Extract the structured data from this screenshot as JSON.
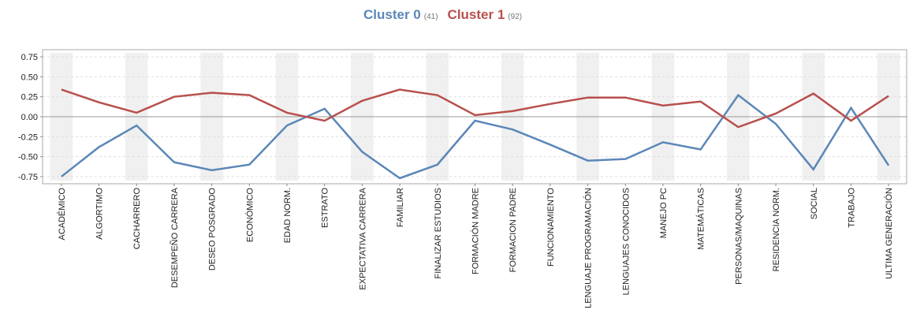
{
  "chart_data": {
    "type": "line",
    "categories": [
      "ACADÉMICO",
      "ALGORTIMO",
      "CACHARRERO",
      "DESEMPEÑO CARRERA",
      "DESEO POSGRADO",
      "ECONÓMICO",
      "EDAD NORM.",
      "ESTRATO",
      "EXPECTATIVA CARRERA",
      "FAMILIAR",
      "FINALIZAR ESTUDIOS",
      "FORMACIÓN MADRE",
      "FORMACION PADRE",
      "FUNCIONAMIENTO",
      "LENGUAJE PROGRAMACIÓN",
      "LENGUAJES CONOCIDOS",
      "MANEJO PC",
      "MATEMÁTICAS",
      "PERSONAS/MAQUINAS",
      "RESIDENCIA NORM.",
      "SOCIAL",
      "TRABAJO",
      "ULTIMA GENERACIÓN"
    ],
    "series": [
      {
        "name": "Cluster 0",
        "size_label": "(41)",
        "color": "#5b87b8",
        "values": [
          -0.75,
          -0.38,
          -0.11,
          -0.57,
          -0.67,
          -0.6,
          -0.11,
          0.1,
          -0.44,
          -0.77,
          -0.6,
          -0.05,
          -0.16,
          -0.35,
          -0.55,
          -0.53,
          -0.32,
          -0.41,
          0.27,
          -0.09,
          -0.66,
          0.11,
          -0.61
        ]
      },
      {
        "name": "Cluster 1",
        "size_label": "(92)",
        "color": "#b8504d",
        "values": [
          0.34,
          0.18,
          0.05,
          0.25,
          0.3,
          0.27,
          0.05,
          -0.05,
          0.2,
          0.34,
          0.27,
          0.02,
          0.07,
          0.16,
          0.24,
          0.24,
          0.14,
          0.19,
          -0.13,
          0.04,
          0.29,
          -0.05,
          0.26
        ]
      }
    ],
    "ylim": [
      -0.8,
      0.8
    ],
    "yticks": [
      0.75,
      {
        "value": 0.5,
        "label": "0.50"
      },
      0.25,
      {
        "value": 0,
        "label": "0.00"
      },
      -0.25,
      {
        "value": -0.5,
        "label": "-0.50"
      },
      -0.75
    ],
    "grid": true
  }
}
